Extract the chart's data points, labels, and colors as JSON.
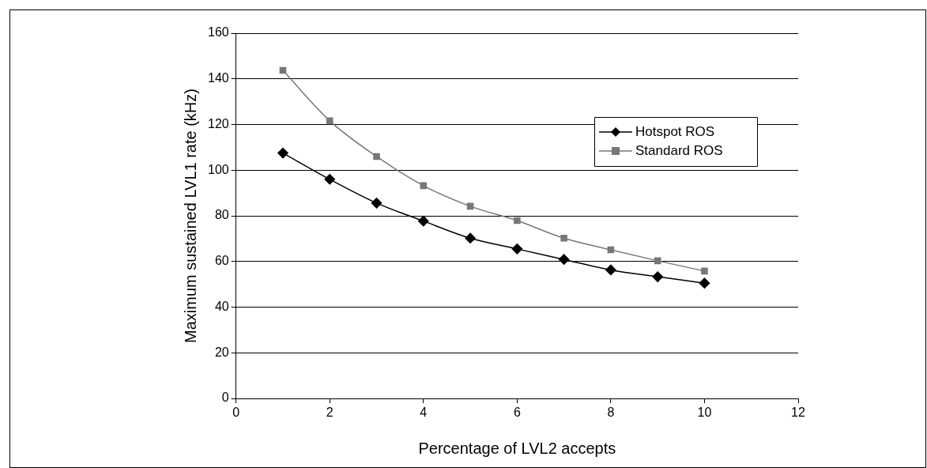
{
  "chart_data": {
    "type": "line",
    "xlabel": "Percentage of LVL2 accepts",
    "ylabel": "Maximum sustained LVL1 rate (kHz)",
    "x": [
      1,
      2,
      3,
      4,
      5,
      6,
      7,
      8,
      9,
      10
    ],
    "series": [
      {
        "name": "Hotspot ROS",
        "color": "#000000",
        "marker": "diamond",
        "values": [
          107.5,
          96,
          85.6,
          77.7,
          70.2,
          65.5,
          60.9,
          56.3,
          53.3,
          50.5
        ]
      },
      {
        "name": "Standard ROS",
        "color": "#777777",
        "marker": "square",
        "values": [
          143.7,
          121.6,
          106,
          93.2,
          84.2,
          77.9,
          70.2,
          65.1,
          60.3,
          55.8
        ]
      }
    ],
    "xlim": [
      0,
      12
    ],
    "xticks": [
      0,
      2,
      4,
      6,
      8,
      10,
      12
    ],
    "ylim": [
      0,
      160
    ],
    "yticks": [
      0,
      20,
      40,
      60,
      80,
      100,
      120,
      140,
      160
    ],
    "grid": "y",
    "legend": "top right",
    "line_style": "solid"
  }
}
